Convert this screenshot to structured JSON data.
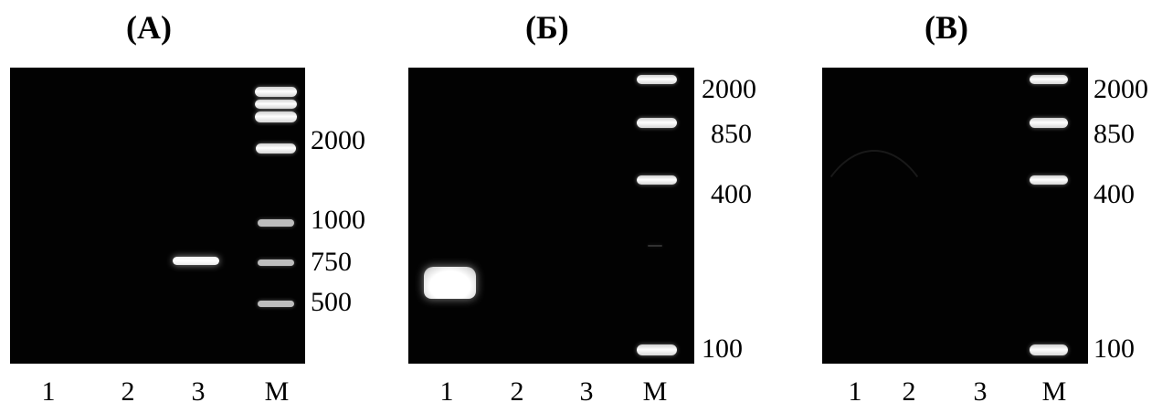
{
  "panels": [
    {
      "title": "(A)",
      "size_labels": [
        "2000",
        "1000",
        "750",
        "500"
      ],
      "lane_labels": [
        "1",
        "2",
        "3",
        "M"
      ]
    },
    {
      "title": "(Б)",
      "size_labels": [
        "2000",
        "850",
        "400",
        "100"
      ],
      "lane_labels": [
        "1",
        "2",
        "3",
        "M"
      ]
    },
    {
      "title": "(В)",
      "size_labels": [
        "2000",
        "850",
        "400",
        "100"
      ],
      "lane_labels": [
        "1",
        "2",
        "3",
        "M"
      ]
    }
  ],
  "colors": {
    "gel_background": "#020202",
    "band": "#ffffff",
    "page_background": "#ffffff"
  }
}
